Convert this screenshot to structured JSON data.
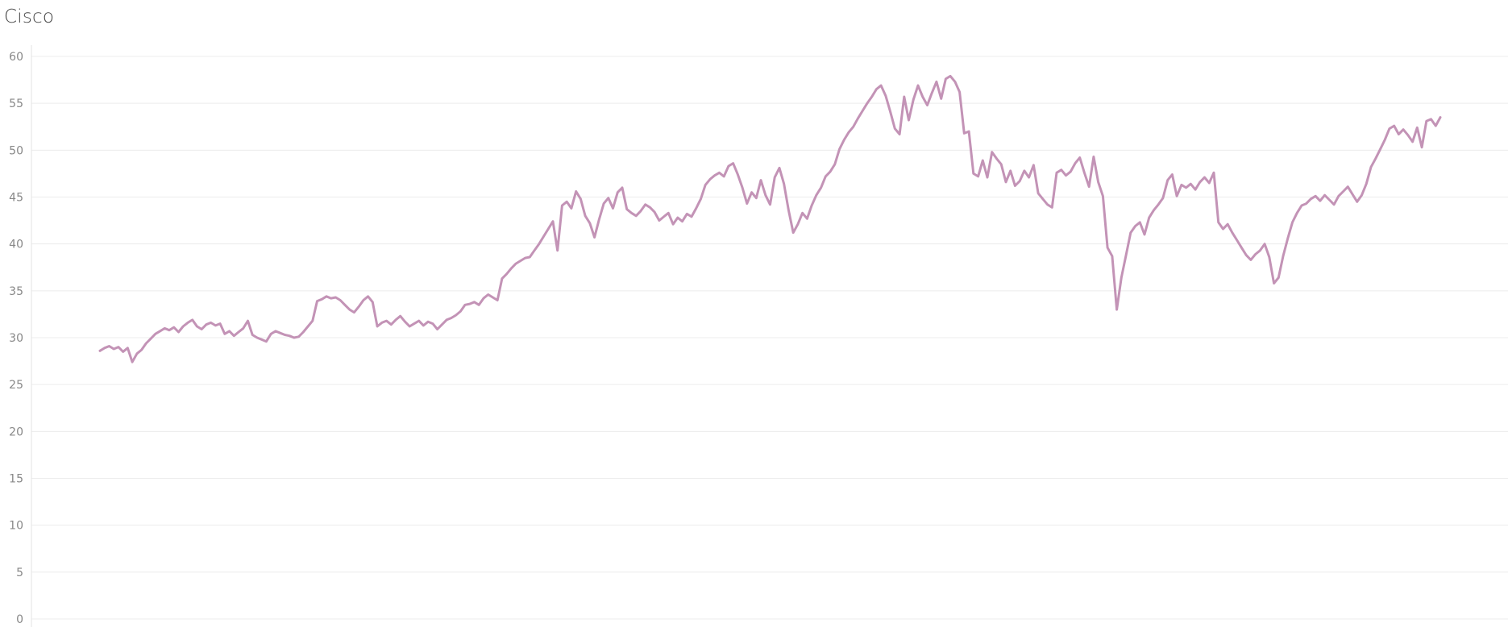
{
  "chart_data": {
    "type": "line",
    "title": "Cisco",
    "xlabel": "",
    "ylabel": "",
    "ylim": [
      0,
      60
    ],
    "yticks": [
      0,
      5,
      10,
      15,
      20,
      25,
      30,
      35,
      40,
      45,
      50,
      55,
      60
    ],
    "grid": true,
    "colors": {
      "line": "#c393b6",
      "grid": "#ececec",
      "axis": "#e3e3e3"
    },
    "series": [
      {
        "values": [
          28.6,
          28.9,
          29.1,
          28.8,
          29.0,
          28.5,
          28.9,
          27.4,
          28.3,
          28.7,
          29.4,
          29.9,
          30.4,
          30.7,
          31.0,
          30.8,
          31.1,
          30.6,
          31.2,
          31.6,
          31.9,
          31.2,
          30.9,
          31.4,
          31.6,
          31.3,
          31.5,
          30.4,
          30.7,
          30.2,
          30.6,
          31.0,
          31.8,
          30.3,
          30.0,
          29.8,
          29.6,
          30.4,
          30.7,
          30.5,
          30.3,
          30.2,
          30.0,
          30.1,
          30.6,
          31.2,
          31.8,
          33.9,
          34.1,
          34.4,
          34.2,
          34.3,
          34.0,
          33.5,
          33.0,
          32.7,
          33.3,
          34.0,
          34.4,
          33.8,
          31.2,
          31.6,
          31.8,
          31.4,
          31.9,
          32.3,
          31.7,
          31.2,
          31.5,
          31.8,
          31.3,
          31.7,
          31.5,
          30.9,
          31.4,
          31.9,
          32.1,
          32.4,
          32.8,
          33.5,
          33.6,
          33.8,
          33.5,
          34.2,
          34.6,
          34.3,
          34.0,
          36.3,
          36.8,
          37.4,
          37.9,
          38.2,
          38.5,
          38.6,
          39.3,
          40.0,
          40.8,
          41.6,
          42.4,
          39.3,
          44.1,
          44.5,
          43.8,
          45.6,
          44.8,
          43.0,
          42.2,
          40.7,
          42.6,
          44.3,
          44.9,
          43.8,
          45.5,
          46.0,
          43.7,
          43.3,
          43.0,
          43.5,
          44.2,
          43.9,
          43.4,
          42.5,
          42.9,
          43.3,
          42.1,
          42.8,
          42.4,
          43.2,
          42.9,
          43.8,
          44.8,
          46.3,
          46.9,
          47.3,
          47.6,
          47.2,
          48.3,
          48.6,
          47.4,
          46.0,
          44.3,
          45.5,
          44.9,
          46.8,
          45.2,
          44.2,
          47.1,
          48.1,
          46.4,
          43.6,
          41.2,
          42.1,
          43.3,
          42.7,
          44.1,
          45.2,
          46.0,
          47.2,
          47.7,
          48.5,
          50.1,
          51.1,
          51.9,
          52.5,
          53.4,
          54.2,
          55.0,
          55.7,
          56.5,
          56.9,
          55.8,
          54.1,
          52.3,
          51.7,
          55.7,
          53.2,
          55.4,
          56.9,
          55.7,
          54.8,
          56.1,
          57.3,
          55.5,
          57.6,
          57.9,
          57.3,
          56.2,
          51.8,
          52.0,
          47.5,
          47.2,
          48.9,
          47.1,
          49.8,
          49.1,
          48.5,
          46.6,
          47.8,
          46.2,
          46.7,
          47.8,
          47.1,
          48.4,
          45.4,
          44.8,
          44.2,
          43.9,
          47.6,
          47.9,
          47.3,
          47.7,
          48.6,
          49.2,
          47.6,
          46.1,
          49.3,
          46.6,
          45.1,
          39.6,
          38.7,
          33.0,
          36.4,
          38.8,
          41.2,
          41.9,
          42.3,
          41.0,
          42.8,
          43.6,
          44.2,
          44.9,
          46.8,
          47.4,
          45.1,
          46.3,
          46.0,
          46.4,
          45.8,
          46.6,
          47.1,
          46.5,
          47.6,
          42.3,
          41.6,
          42.1,
          41.2,
          40.4,
          39.6,
          38.8,
          38.3,
          38.9,
          39.3,
          40.0,
          38.6,
          35.8,
          36.4,
          38.7,
          40.6,
          42.3,
          43.3,
          44.1,
          44.3,
          44.8,
          45.1,
          44.6,
          45.2,
          44.7,
          44.2,
          45.1,
          45.6,
          46.1,
          45.3,
          44.5,
          45.2,
          46.4,
          48.2,
          49.1,
          50.1,
          51.1,
          52.3,
          52.6,
          51.7,
          52.2,
          51.6,
          50.9,
          52.4,
          50.3,
          53.1,
          53.3,
          52.6,
          53.5
        ]
      }
    ]
  }
}
